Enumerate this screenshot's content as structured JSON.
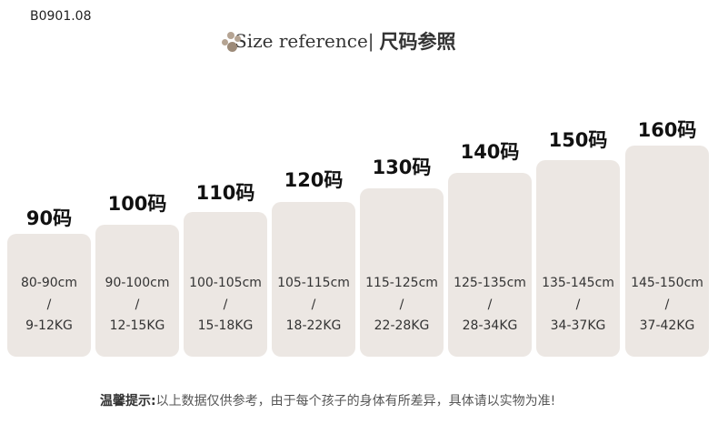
{
  "code": "B0901.08",
  "title": {
    "en": "Size reference|",
    "cn": "尺码参照",
    "icon": "paw-icon"
  },
  "box_color": "#ece7e3",
  "sizes": [
    {
      "label": "90码",
      "height": "80-90cm",
      "sep": "/",
      "weight": "9-12KG"
    },
    {
      "label": "100码",
      "height": "90-100cm",
      "sep": "/",
      "weight": "12-15KG"
    },
    {
      "label": "110码",
      "height": "100-105cm",
      "sep": "/",
      "weight": "15-18KG"
    },
    {
      "label": "120码",
      "height": "105-115cm",
      "sep": "/",
      "weight": "18-22KG"
    },
    {
      "label": "130码",
      "height": "115-125cm",
      "sep": "/",
      "weight": "22-28KG"
    },
    {
      "label": "140码",
      "height": "125-135cm",
      "sep": "/",
      "weight": "28-34KG"
    },
    {
      "label": "150码",
      "height": "135-145cm",
      "sep": "/",
      "weight": "34-37KG"
    },
    {
      "label": "160码",
      "height": "145-150cm",
      "sep": "/",
      "weight": "37-42KG"
    }
  ],
  "note": {
    "bold": "温馨提示:",
    "text": "以上数据仅供参考，由于每个孩子的身体有所差异，具体请以实物为准!"
  }
}
